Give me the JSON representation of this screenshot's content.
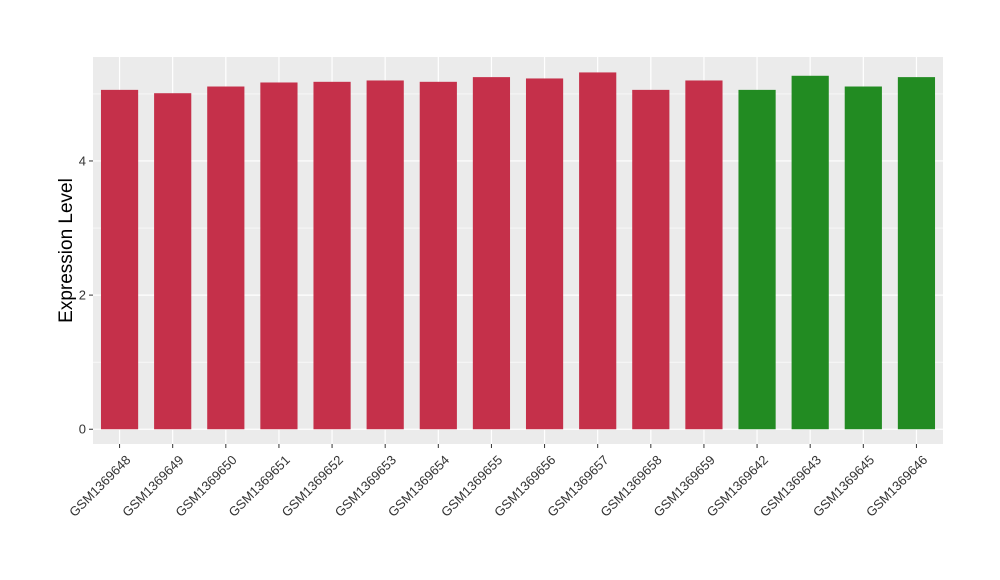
{
  "chart_data": {
    "type": "bar",
    "title": "",
    "xlabel": "",
    "ylabel": "Expression Level",
    "ylim": [
      -0.22,
      5.55
    ],
    "yticks": [
      0,
      2,
      4
    ],
    "grid": true,
    "legend": "none",
    "colors": {
      "panel": "#EBEBEB",
      "grid": "#FFFFFF",
      "tick": "#333333",
      "red": "#C5304A",
      "green": "#228B22"
    },
    "categories": [
      "GSM1369648",
      "GSM1369649",
      "GSM1369650",
      "GSM1369651",
      "GSM1369652",
      "GSM1369653",
      "GSM1369654",
      "GSM1369655",
      "GSM1369656",
      "GSM1369657",
      "GSM1369658",
      "GSM1369659",
      "GSM1369642",
      "GSM1369643",
      "GSM1369645",
      "GSM1369646"
    ],
    "values": [
      5.06,
      5.01,
      5.11,
      5.17,
      5.18,
      5.2,
      5.18,
      5.25,
      5.23,
      5.32,
      5.06,
      5.2,
      5.06,
      5.27,
      5.11,
      5.25
    ],
    "bar_colors": [
      "#C5304A",
      "#C5304A",
      "#C5304A",
      "#C5304A",
      "#C5304A",
      "#C5304A",
      "#C5304A",
      "#C5304A",
      "#C5304A",
      "#C5304A",
      "#C5304A",
      "#C5304A",
      "#228B22",
      "#228B22",
      "#228B22",
      "#228B22"
    ]
  }
}
